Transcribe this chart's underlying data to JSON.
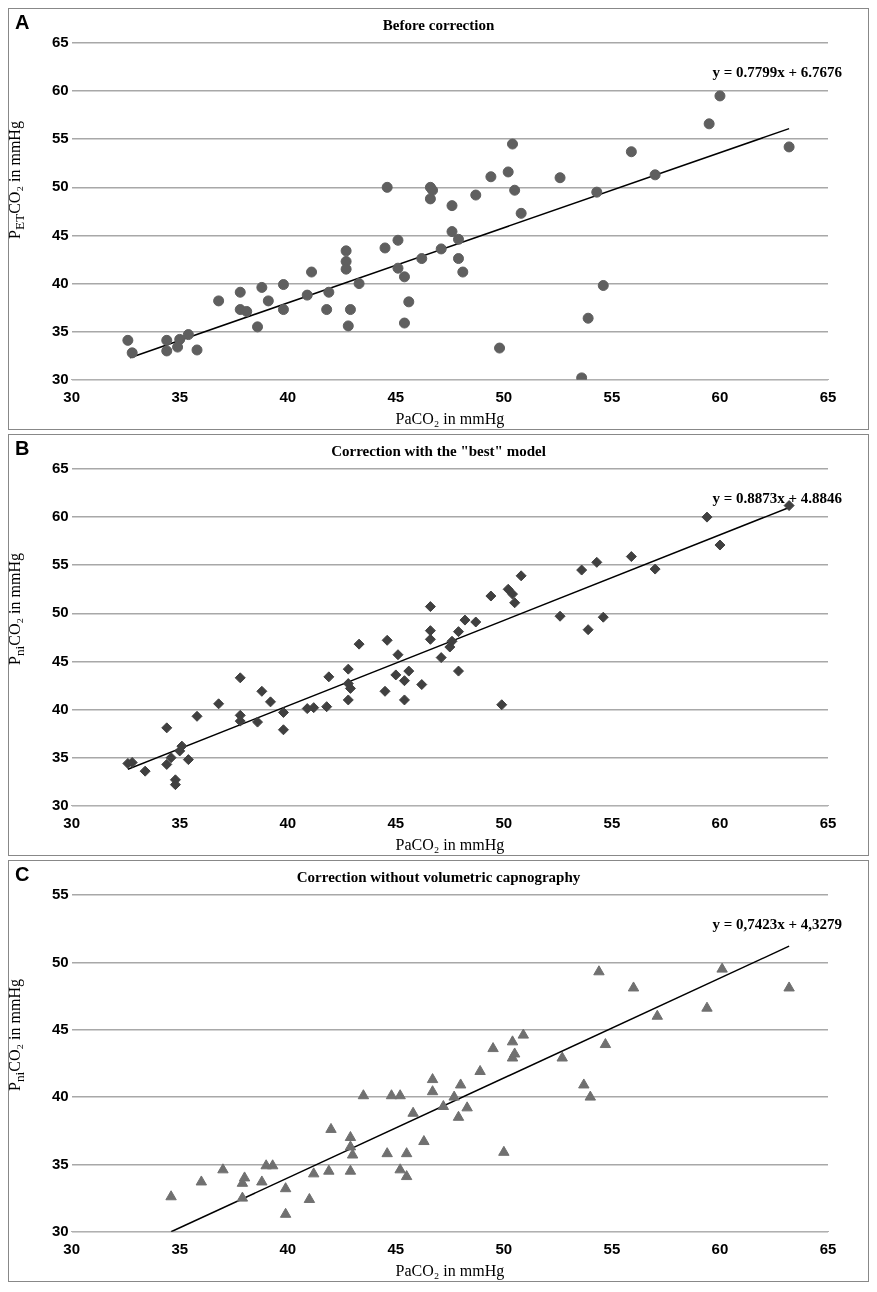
{
  "chart_data": [
    {
      "type": "scatter",
      "title": "Before correction",
      "xlabel": "PaCO₂ in mmHg",
      "ylabel": "P$_{ET}$CO₂ in mmHg",
      "xlim": [
        30,
        65
      ],
      "xticks": [
        30,
        35,
        40,
        45,
        50,
        55,
        60,
        65
      ],
      "ylim": [
        30,
        65
      ],
      "yticks": [
        30,
        35,
        40,
        45,
        50,
        55,
        60,
        65
      ],
      "grid": "y",
      "marker": "circle",
      "annotations": [
        "A",
        "y = 0.7799x + 6.7676"
      ],
      "series": [
        {
          "color": "#5f5f5f",
          "x": [
            32.6,
            32.8,
            34.4,
            34.4,
            35.0,
            34.9,
            35.4,
            35.8,
            36.8,
            37.8,
            37.8,
            38.1,
            38.6,
            38.8,
            39.1,
            39.8,
            39.8,
            40.9,
            41.1,
            41.8,
            41.9,
            42.7,
            42.7,
            42.7,
            42.9,
            42.8,
            43.3,
            44.5,
            44.6,
            45.1,
            45.1,
            45.4,
            45.6,
            45.4,
            46.2,
            46.6,
            46.7,
            46.6,
            47.1,
            47.6,
            47.6,
            47.9,
            47.9,
            48.1,
            48.7,
            49.4,
            49.8,
            50.2,
            50.4,
            50.5,
            50.8,
            52.6,
            53.6,
            53.9,
            54.3,
            54.6,
            55.9,
            57.0,
            59.5,
            60.0,
            63.2
          ],
          "values": [
            34.1,
            32.8,
            34.1,
            33.0,
            34.2,
            33.4,
            34.7,
            33.1,
            38.2,
            39.1,
            37.3,
            37.1,
            35.5,
            39.6,
            38.2,
            39.9,
            37.3,
            38.8,
            41.2,
            37.3,
            39.1,
            43.4,
            42.3,
            41.5,
            37.3,
            35.6,
            40.0,
            43.7,
            50.0,
            44.5,
            41.6,
            40.7,
            38.1,
            35.9,
            42.6,
            50.0,
            49.7,
            48.8,
            43.6,
            48.1,
            45.4,
            44.6,
            42.6,
            41.2,
            49.2,
            51.1,
            33.3,
            51.6,
            54.5,
            49.7,
            47.3,
            51.0,
            30.2,
            36.4,
            49.5,
            39.8,
            53.7,
            51.3,
            56.6,
            59.5,
            54.2
          ]
        },
        {
          "type": "line",
          "marker": "none",
          "color": "#000000",
          "x": [
            32.7,
            63.2
          ],
          "values": [
            32.3,
            56.1
          ]
        }
      ]
    },
    {
      "type": "scatter",
      "title": "Correction with the \"best\" model",
      "xlabel": "PaCO₂ in mmHg",
      "ylabel": "P$_{ni}$CO₂ in mmHg",
      "xlim": [
        30,
        65
      ],
      "xticks": [
        30,
        35,
        40,
        45,
        50,
        55,
        60,
        65
      ],
      "ylim": [
        30,
        65
      ],
      "yticks": [
        30,
        35,
        40,
        45,
        50,
        55,
        60,
        65
      ],
      "grid": "y",
      "marker": "diamond",
      "annotations": [
        "B",
        "y = 0.8873x + 4.8846"
      ],
      "series": [
        {
          "color": "#404040",
          "x": [
            32.6,
            32.8,
            33.4,
            34.4,
            34.4,
            34.6,
            34.8,
            34.8,
            35.0,
            35.1,
            35.4,
            35.8,
            36.8,
            37.8,
            37.8,
            37.8,
            38.6,
            38.8,
            39.2,
            39.8,
            39.8,
            40.9,
            41.2,
            41.8,
            41.9,
            42.8,
            42.8,
            42.9,
            42.8,
            43.3,
            44.5,
            44.6,
            45.1,
            45.0,
            45.4,
            45.4,
            45.6,
            46.2,
            46.6,
            46.6,
            46.6,
            47.1,
            47.5,
            47.6,
            47.9,
            47.9,
            48.2,
            48.7,
            49.4,
            50.2,
            50.4,
            50.5,
            49.9,
            50.8,
            52.6,
            53.6,
            53.9,
            54.3,
            54.6,
            55.9,
            57.0,
            59.4,
            60.0,
            63.2
          ],
          "values": [
            34.4,
            34.5,
            33.6,
            38.1,
            34.3,
            35.0,
            32.7,
            32.2,
            35.7,
            36.2,
            34.8,
            39.3,
            40.6,
            43.3,
            39.4,
            38.8,
            38.7,
            41.9,
            40.8,
            39.7,
            37.9,
            40.1,
            40.2,
            40.3,
            43.4,
            44.2,
            42.7,
            42.2,
            41.0,
            46.8,
            41.9,
            47.2,
            45.7,
            43.6,
            43.0,
            41.0,
            44.0,
            42.6,
            50.7,
            48.2,
            47.3,
            45.4,
            46.5,
            47.1,
            48.1,
            44.0,
            49.3,
            49.1,
            51.8,
            52.5,
            52.0,
            51.1,
            40.5,
            53.9,
            49.7,
            54.5,
            48.3,
            55.3,
            49.6,
            55.9,
            54.6,
            60.0,
            57.1,
            61.2
          ]
        },
        {
          "type": "line",
          "marker": "none",
          "color": "#000000",
          "x": [
            32.6,
            63.2
          ],
          "values": [
            33.8,
            61.0
          ]
        }
      ]
    },
    {
      "type": "scatter",
      "title": "Correction without volumetric capnography",
      "xlabel": "PaCO₂ in mmHg",
      "ylabel": "P$_{ni}$CO₂ in mmHg",
      "xlim": [
        30,
        65
      ],
      "xticks": [
        30,
        35,
        40,
        45,
        50,
        55,
        60,
        65
      ],
      "ylim": [
        30,
        55
      ],
      "yticks": [
        30,
        35,
        40,
        45,
        50,
        55
      ],
      "grid": "y",
      "marker": "triangle",
      "annotations": [
        "C",
        "y = 0,7423x + 4,3279"
      ],
      "series": [
        {
          "color": "#707070",
          "x": [
            34.6,
            36.0,
            37.0,
            37.9,
            37.9,
            38.0,
            38.8,
            39.0,
            39.3,
            39.9,
            39.9,
            41.0,
            41.2,
            41.9,
            42.0,
            42.9,
            42.9,
            43.0,
            42.9,
            43.5,
            44.6,
            44.8,
            45.2,
            45.2,
            45.5,
            45.5,
            45.8,
            46.3,
            46.7,
            46.7,
            47.2,
            47.7,
            48.0,
            47.9,
            48.3,
            48.9,
            49.5,
            50.0,
            50.4,
            50.4,
            50.5,
            50.9,
            52.7,
            53.7,
            54.0,
            54.4,
            54.7,
            56.0,
            57.1,
            59.4,
            60.1,
            63.2
          ],
          "values": [
            32.6,
            33.7,
            34.6,
            32.5,
            33.6,
            34.0,
            33.7,
            34.9,
            34.9,
            33.2,
            31.3,
            32.4,
            34.3,
            34.5,
            37.6,
            37.0,
            36.3,
            35.7,
            34.5,
            40.1,
            35.8,
            40.1,
            40.1,
            34.6,
            35.8,
            34.1,
            38.8,
            36.7,
            41.3,
            40.4,
            39.3,
            40.0,
            40.9,
            38.5,
            39.2,
            41.9,
            43.6,
            35.9,
            44.1,
            42.9,
            43.2,
            44.6,
            42.9,
            40.9,
            40.0,
            49.3,
            43.9,
            48.1,
            46.0,
            46.6,
            49.5,
            48.1
          ]
        },
        {
          "type": "line",
          "marker": "none",
          "color": "#000000",
          "x": [
            34.6,
            63.2
          ],
          "values": [
            30.0,
            51.2
          ]
        }
      ]
    }
  ]
}
